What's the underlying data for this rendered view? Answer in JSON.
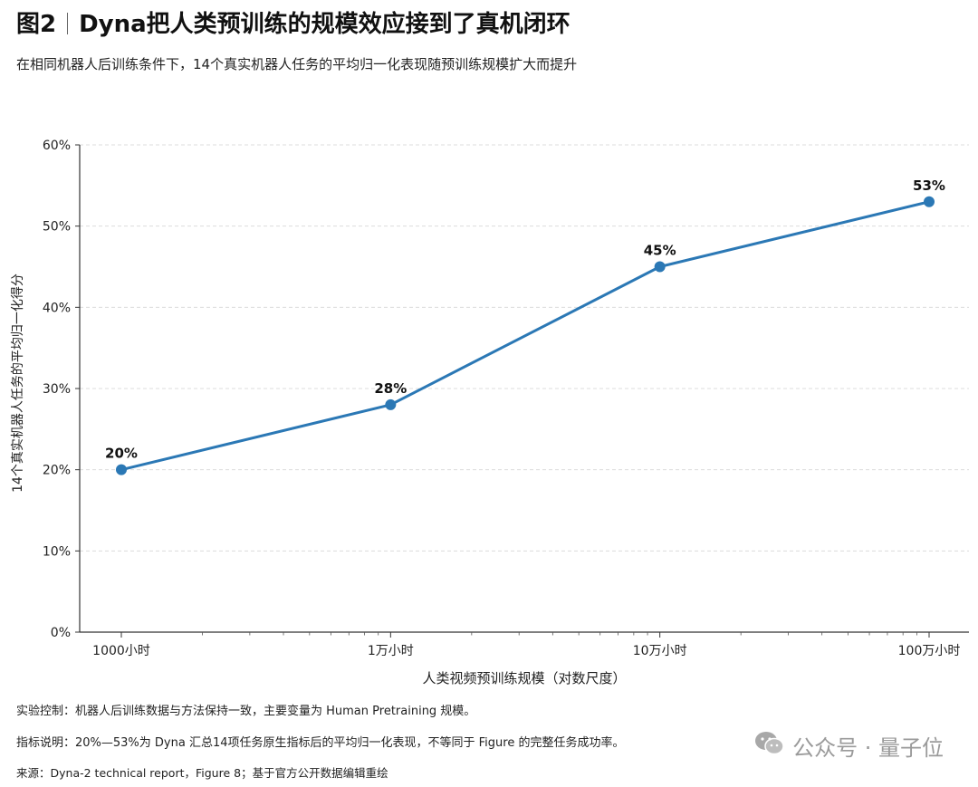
{
  "header": {
    "fig_label": "图2",
    "title": "Dyna把人类预训练的规模效应接到了真机闭环",
    "subtitle": "在相同机器人后训练条件下，14个真实机器人任务的平均归一化表现随预训练规模扩大而提升"
  },
  "chart_data": {
    "type": "line",
    "categories": [
      "1000小时",
      "1万小时",
      "10万小时",
      "100万小时"
    ],
    "x": [
      1000,
      10000,
      100000,
      1000000
    ],
    "xscale": "log",
    "values": [
      20,
      28,
      45,
      53
    ],
    "data_labels": [
      "20%",
      "28%",
      "45%",
      "53%"
    ],
    "xlabel": "人类视频预训练规模（对数尺度）",
    "ylabel": "14个真实机器人任务的平均归一化得分",
    "ylim": [
      0,
      60
    ],
    "yticks": [
      "0%",
      "10%",
      "20%",
      "30%",
      "40%",
      "50%",
      "60%"
    ],
    "grid": true,
    "color": "#2b78b5"
  },
  "notes": {
    "control": "实验控制：机器人后训练数据与方法保持一致，主要变量为 Human Pretraining 规模。",
    "metric": "指标说明：20%—53%为 Dyna 汇总14项任务原生指标后的平均归一化表现，不等同于 Figure 的完整任务成功率。",
    "source": "来源：Dyna-2 technical report，Figure 8；基于官方公开数据编辑重绘"
  },
  "watermark": {
    "icon": "wechat-icon",
    "text": "公众号 · 量子位"
  }
}
